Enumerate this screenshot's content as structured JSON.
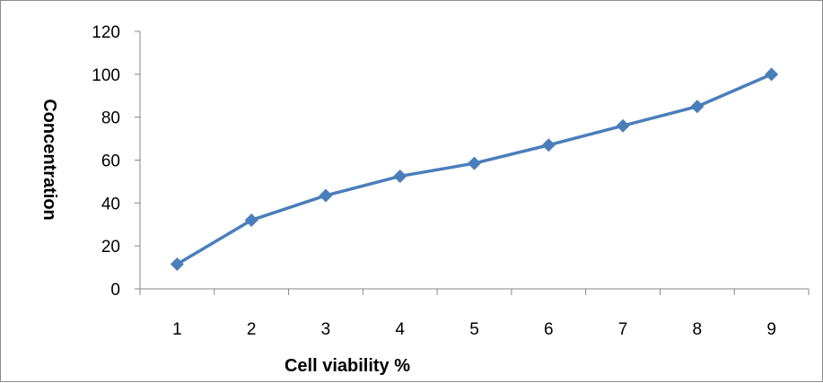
{
  "chart_data": {
    "type": "line",
    "title": "",
    "xlabel": "Cell viability %",
    "ylabel": "Concentration",
    "categories": [
      "1",
      "2",
      "3",
      "4",
      "5",
      "6",
      "7",
      "8",
      "9"
    ],
    "series": [
      {
        "values": [
          11.5,
          32,
          43.5,
          52.5,
          58.5,
          67,
          76,
          85,
          100
        ]
      }
    ],
    "ylim": [
      0,
      120
    ],
    "yticks": [
      "0",
      "20",
      "40",
      "60",
      "80",
      "100",
      "120"
    ],
    "grid": false,
    "legend": "none",
    "line_color": "#4a7ebb",
    "marker": "diamond"
  }
}
